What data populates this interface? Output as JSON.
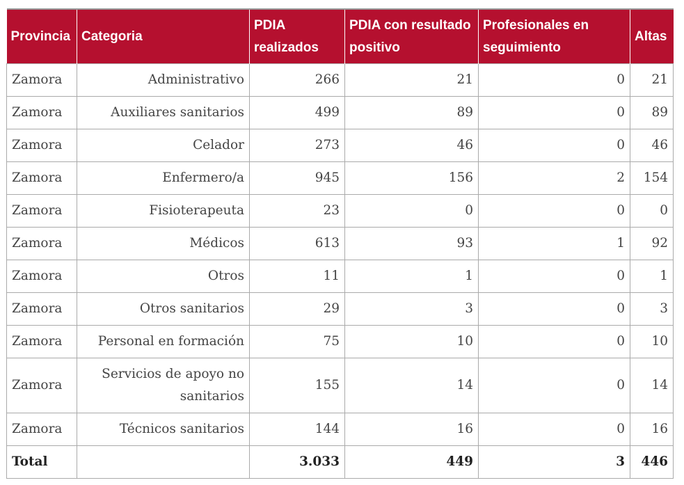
{
  "table": {
    "header": [
      "Provincia",
      "Categoria",
      "PDIA realizados",
      "PDIA con resultado positivo",
      "Profesionales en seguimiento",
      "Altas"
    ],
    "rows": [
      [
        "Zamora",
        "Administrativo",
        266,
        21,
        0,
        21
      ],
      [
        "Zamora",
        "Auxiliares sanitarios",
        499,
        89,
        0,
        89
      ],
      [
        "Zamora",
        "Celador",
        273,
        46,
        0,
        46
      ],
      [
        "Zamora",
        "Enfermero/a",
        945,
        156,
        2,
        154
      ],
      [
        "Zamora",
        "Fisioterapeuta",
        23,
        0,
        0,
        0
      ],
      [
        "Zamora",
        "Médicos",
        613,
        93,
        1,
        92
      ],
      [
        "Zamora",
        "Otros",
        11,
        1,
        0,
        1
      ],
      [
        "Zamora",
        "Otros sanitarios",
        29,
        3,
        0,
        3
      ],
      [
        "Zamora",
        "Personal en formación",
        75,
        10,
        0,
        10
      ],
      [
        "Zamora",
        "Servicios de apoyo no sanitarios",
        155,
        14,
        0,
        14
      ],
      [
        "Zamora",
        "Técnicos sanitarios",
        144,
        16,
        0,
        16
      ]
    ],
    "total": [
      "Total",
      "3.033",
      449,
      3,
      446
    ]
  }
}
